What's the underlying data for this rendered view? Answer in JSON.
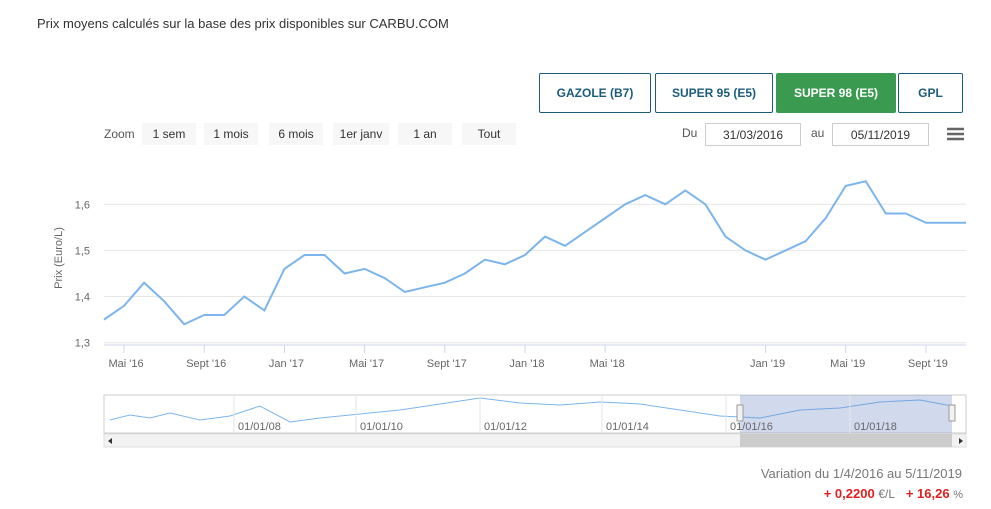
{
  "ui": {
    "note": "Prix moyens calculés sur la base des prix disponibles sur CARBU.COM",
    "fuels": [
      "GAZOLE (B7)",
      "SUPER 95 (E5)",
      "SUPER 98 (E5)",
      "GPL"
    ],
    "zoom_label": "Zoom",
    "zoom": [
      "1 sem",
      "1 mois",
      "6 mois",
      "1er janv",
      "1 an",
      "Tout"
    ],
    "from_label": "Du",
    "from": "31/03/2016",
    "to_label": "au",
    "to": "05/11/2019",
    "navigator_labels": [
      "01/01/08",
      "01/01/10",
      "01/01/12",
      "01/01/14",
      "01/01/16",
      "01/01/18"
    ],
    "variation": "Variation du 1/4/2016 au 5/11/2019",
    "change_abs": "+ 0,2200",
    "change_abs_unit": "€/L",
    "change_pct": "+ 16,26",
    "change_pct_unit": "%"
  },
  "chart_data": {
    "type": "line",
    "y_label": "Prix (Euro/L)",
    "grid": true,
    "xlim": [
      "2016-04",
      "2019-11"
    ],
    "ylim": [
      1.295,
      1.67
    ],
    "yticks": [
      {
        "value": 1.3,
        "label": "1,3"
      },
      {
        "value": 1.4,
        "label": "1,4"
      },
      {
        "value": 1.5,
        "label": "1,5"
      },
      {
        "value": 1.6,
        "label": "1,6"
      }
    ],
    "xticks": [
      {
        "value": "2016-05",
        "label": "Mai '16"
      },
      {
        "value": "2016-09",
        "label": "Sept '16"
      },
      {
        "value": "2017-01",
        "label": "Jan '17"
      },
      {
        "value": "2017-05",
        "label": "Mai '17"
      },
      {
        "value": "2017-09",
        "label": "Sept '17"
      },
      {
        "value": "2018-01",
        "label": "Jan '18"
      },
      {
        "value": "2018-05",
        "label": "Mai '18"
      },
      {
        "value": "2019-01",
        "label": "Jan '19"
      },
      {
        "value": "2019-05",
        "label": "Mai '19"
      },
      {
        "value": "2019-09",
        "label": "Sept '19"
      }
    ],
    "series": [
      {
        "color": "#7cb5ec",
        "x": [
          "2016-04",
          "2016-05",
          "2016-06",
          "2016-07",
          "2016-08",
          "2016-09",
          "2016-10",
          "2016-11",
          "2016-12",
          "2017-01",
          "2017-02",
          "2017-03",
          "2017-04",
          "2017-05",
          "2017-06",
          "2017-07",
          "2017-08",
          "2017-09",
          "2017-10",
          "2017-11",
          "2017-12",
          "2018-01",
          "2018-02",
          "2018-03",
          "2018-04",
          "2018-05",
          "2018-06",
          "2018-07",
          "2018-08",
          "2018-09",
          "2018-10",
          "2018-11",
          "2018-12",
          "2019-01",
          "2019-02",
          "2019-03",
          "2019-04",
          "2019-05",
          "2019-06",
          "2019-07",
          "2019-08",
          "2019-09",
          "2019-10",
          "2019-11"
        ],
        "values": [
          1.35,
          1.38,
          1.43,
          1.39,
          1.34,
          1.36,
          1.36,
          1.4,
          1.37,
          1.46,
          1.49,
          1.49,
          1.45,
          1.46,
          1.44,
          1.41,
          1.42,
          1.43,
          1.45,
          1.48,
          1.47,
          1.49,
          1.53,
          1.51,
          1.54,
          1.57,
          1.6,
          1.62,
          1.6,
          1.63,
          1.6,
          1.53,
          1.5,
          1.48,
          1.5,
          1.52,
          1.57,
          1.64,
          1.65,
          1.58,
          1.58,
          1.56,
          1.56,
          1.56
        ]
      }
    ]
  }
}
